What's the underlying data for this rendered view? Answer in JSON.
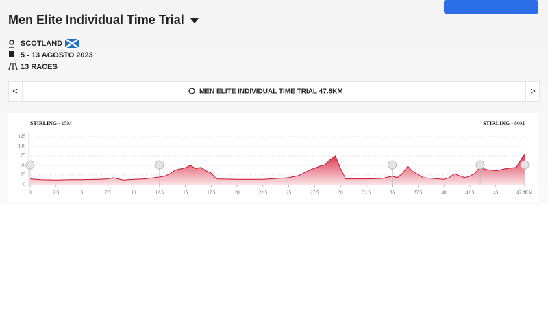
{
  "header": {
    "title": "Men Elite Individual Time Trial",
    "location": "SCOTLAND",
    "dates": "5 - 13 AGOSTO 2023",
    "races": "13 RACES"
  },
  "nav": {
    "stage": "MEN ELITE INDIVIDUAL TIME TRIAL 47.8KM",
    "prev": "<",
    "next": ">"
  },
  "chart_data": {
    "type": "area",
    "start_label": "STIRLING",
    "start_elevation": "- 15M",
    "finish_label": "STIRLING",
    "finish_elevation": "- 80M",
    "x": [
      0,
      1,
      2.5,
      4,
      5,
      6.5,
      7.5,
      8,
      9,
      10,
      11,
      12,
      13,
      13.5,
      14,
      15,
      15.5,
      16,
      16.5,
      17,
      17.5,
      18,
      20,
      22.5,
      25,
      26,
      27,
      28,
      28.5,
      29,
      29.5,
      30,
      30.5,
      32.5,
      34,
      35,
      35.5,
      36,
      36.5,
      37,
      37.5,
      38,
      40,
      40.5,
      41,
      42,
      42.5,
      43,
      43.5,
      44,
      45,
      46,
      47,
      47.5,
      47.8
    ],
    "values": [
      15,
      13,
      12,
      13,
      13,
      14,
      15,
      18,
      12,
      14,
      15,
      18,
      22,
      28,
      38,
      44,
      50,
      42,
      45,
      36,
      30,
      15,
      14,
      14,
      18,
      24,
      38,
      48,
      52,
      65,
      75,
      42,
      15,
      15,
      16,
      22,
      18,
      30,
      48,
      34,
      26,
      18,
      14,
      18,
      28,
      18,
      22,
      30,
      46,
      40,
      36,
      42,
      45,
      68,
      80
    ],
    "waypoints": [
      0,
      12.5,
      35,
      43.5,
      47.8
    ],
    "xlim": [
      0,
      47.8
    ],
    "ylim": [
      0,
      125
    ],
    "xticks": [
      0,
      2.5,
      5,
      7.5,
      10,
      12.5,
      15,
      17.5,
      20,
      22.5,
      25,
      27.5,
      30,
      32.5,
      35,
      37.5,
      40,
      42.5,
      45,
      {
        "value": 47.8,
        "label": "47.8KM"
      }
    ],
    "yticks": [
      0,
      25,
      50,
      75,
      100,
      125
    ],
    "color": "#c8102e",
    "grid": true
  }
}
